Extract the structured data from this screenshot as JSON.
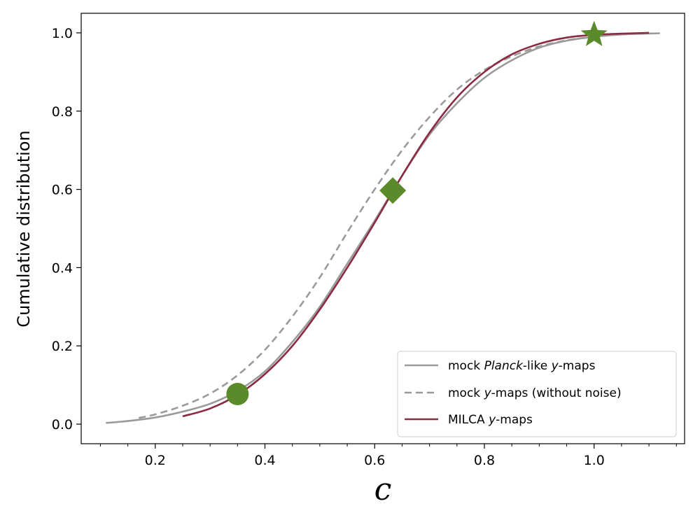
{
  "chart_data": {
    "type": "line",
    "title": "",
    "xlabel": "c",
    "ylabel": "Cumulative distribution",
    "xlim": [
      0.065,
      1.165
    ],
    "ylim": [
      -0.05,
      1.05
    ],
    "x_ticks": [
      0.2,
      0.4,
      0.6,
      0.8,
      1.0
    ],
    "x_tick_labels": [
      "0.2",
      "0.4",
      "0.6",
      "0.8",
      "1.0"
    ],
    "y_ticks": [
      0.0,
      0.2,
      0.4,
      0.6,
      0.8,
      1.0
    ],
    "y_tick_labels": [
      "0.0",
      "0.2",
      "0.4",
      "0.6",
      "0.8",
      "1.0"
    ],
    "x_minor_step": 0.05,
    "grid": false,
    "legend_position": "lower-right",
    "legend": [
      {
        "pre": "mock ",
        "italic": "Planck",
        "post": "-like ",
        "italic2": "y",
        "post2": "-maps",
        "series": 0
      },
      {
        "pre": "mock ",
        "italic": "",
        "post": "",
        "italic2": "y",
        "post2": "-maps (without noise)",
        "series": 1
      },
      {
        "pre": "MILCA ",
        "italic": "",
        "post": "",
        "italic2": "y",
        "post2": "-maps",
        "series": 2
      }
    ],
    "series": [
      {
        "color": "#9a9a9a",
        "dash": "solid",
        "x": [
          0.11,
          0.15,
          0.2,
          0.25,
          0.3,
          0.35,
          0.4,
          0.45,
          0.5,
          0.55,
          0.6,
          0.65,
          0.7,
          0.75,
          0.8,
          0.85,
          0.9,
          0.95,
          1.0,
          1.05,
          1.12
        ],
        "y": [
          0.003,
          0.008,
          0.017,
          0.032,
          0.052,
          0.085,
          0.135,
          0.21,
          0.3,
          0.41,
          0.52,
          0.635,
          0.74,
          0.82,
          0.885,
          0.93,
          0.962,
          0.98,
          0.99,
          0.996,
          0.999
        ]
      },
      {
        "color": "#9a9a9a",
        "dash": "dashed",
        "x": [
          0.17,
          0.2,
          0.25,
          0.3,
          0.35,
          0.4,
          0.45,
          0.5,
          0.55,
          0.6,
          0.65,
          0.7,
          0.75,
          0.8,
          0.85,
          0.9,
          0.95,
          1.0,
          1.05,
          1.1
        ],
        "y": [
          0.016,
          0.025,
          0.047,
          0.078,
          0.125,
          0.19,
          0.275,
          0.375,
          0.49,
          0.6,
          0.7,
          0.785,
          0.855,
          0.905,
          0.94,
          0.965,
          0.981,
          0.99,
          0.996,
          0.999
        ]
      },
      {
        "color": "#8b2a42",
        "dash": "solid",
        "x": [
          0.25,
          0.3,
          0.35,
          0.4,
          0.45,
          0.5,
          0.55,
          0.6,
          0.65,
          0.7,
          0.75,
          0.8,
          0.85,
          0.9,
          0.95,
          1.0,
          1.05,
          1.1
        ],
        "y": [
          0.02,
          0.04,
          0.075,
          0.128,
          0.2,
          0.293,
          0.4,
          0.515,
          0.635,
          0.745,
          0.835,
          0.9,
          0.945,
          0.972,
          0.988,
          0.995,
          0.998,
          1.0
        ]
      }
    ],
    "markers": [
      {
        "shape": "circle",
        "x": 0.35,
        "y": 0.077,
        "color": "#5a8a2a"
      },
      {
        "shape": "diamond",
        "x": 0.633,
        "y": 0.597,
        "color": "#5a8a2a"
      },
      {
        "shape": "star",
        "x": 1.0,
        "y": 0.995,
        "color": "#5a8a2a"
      }
    ]
  }
}
